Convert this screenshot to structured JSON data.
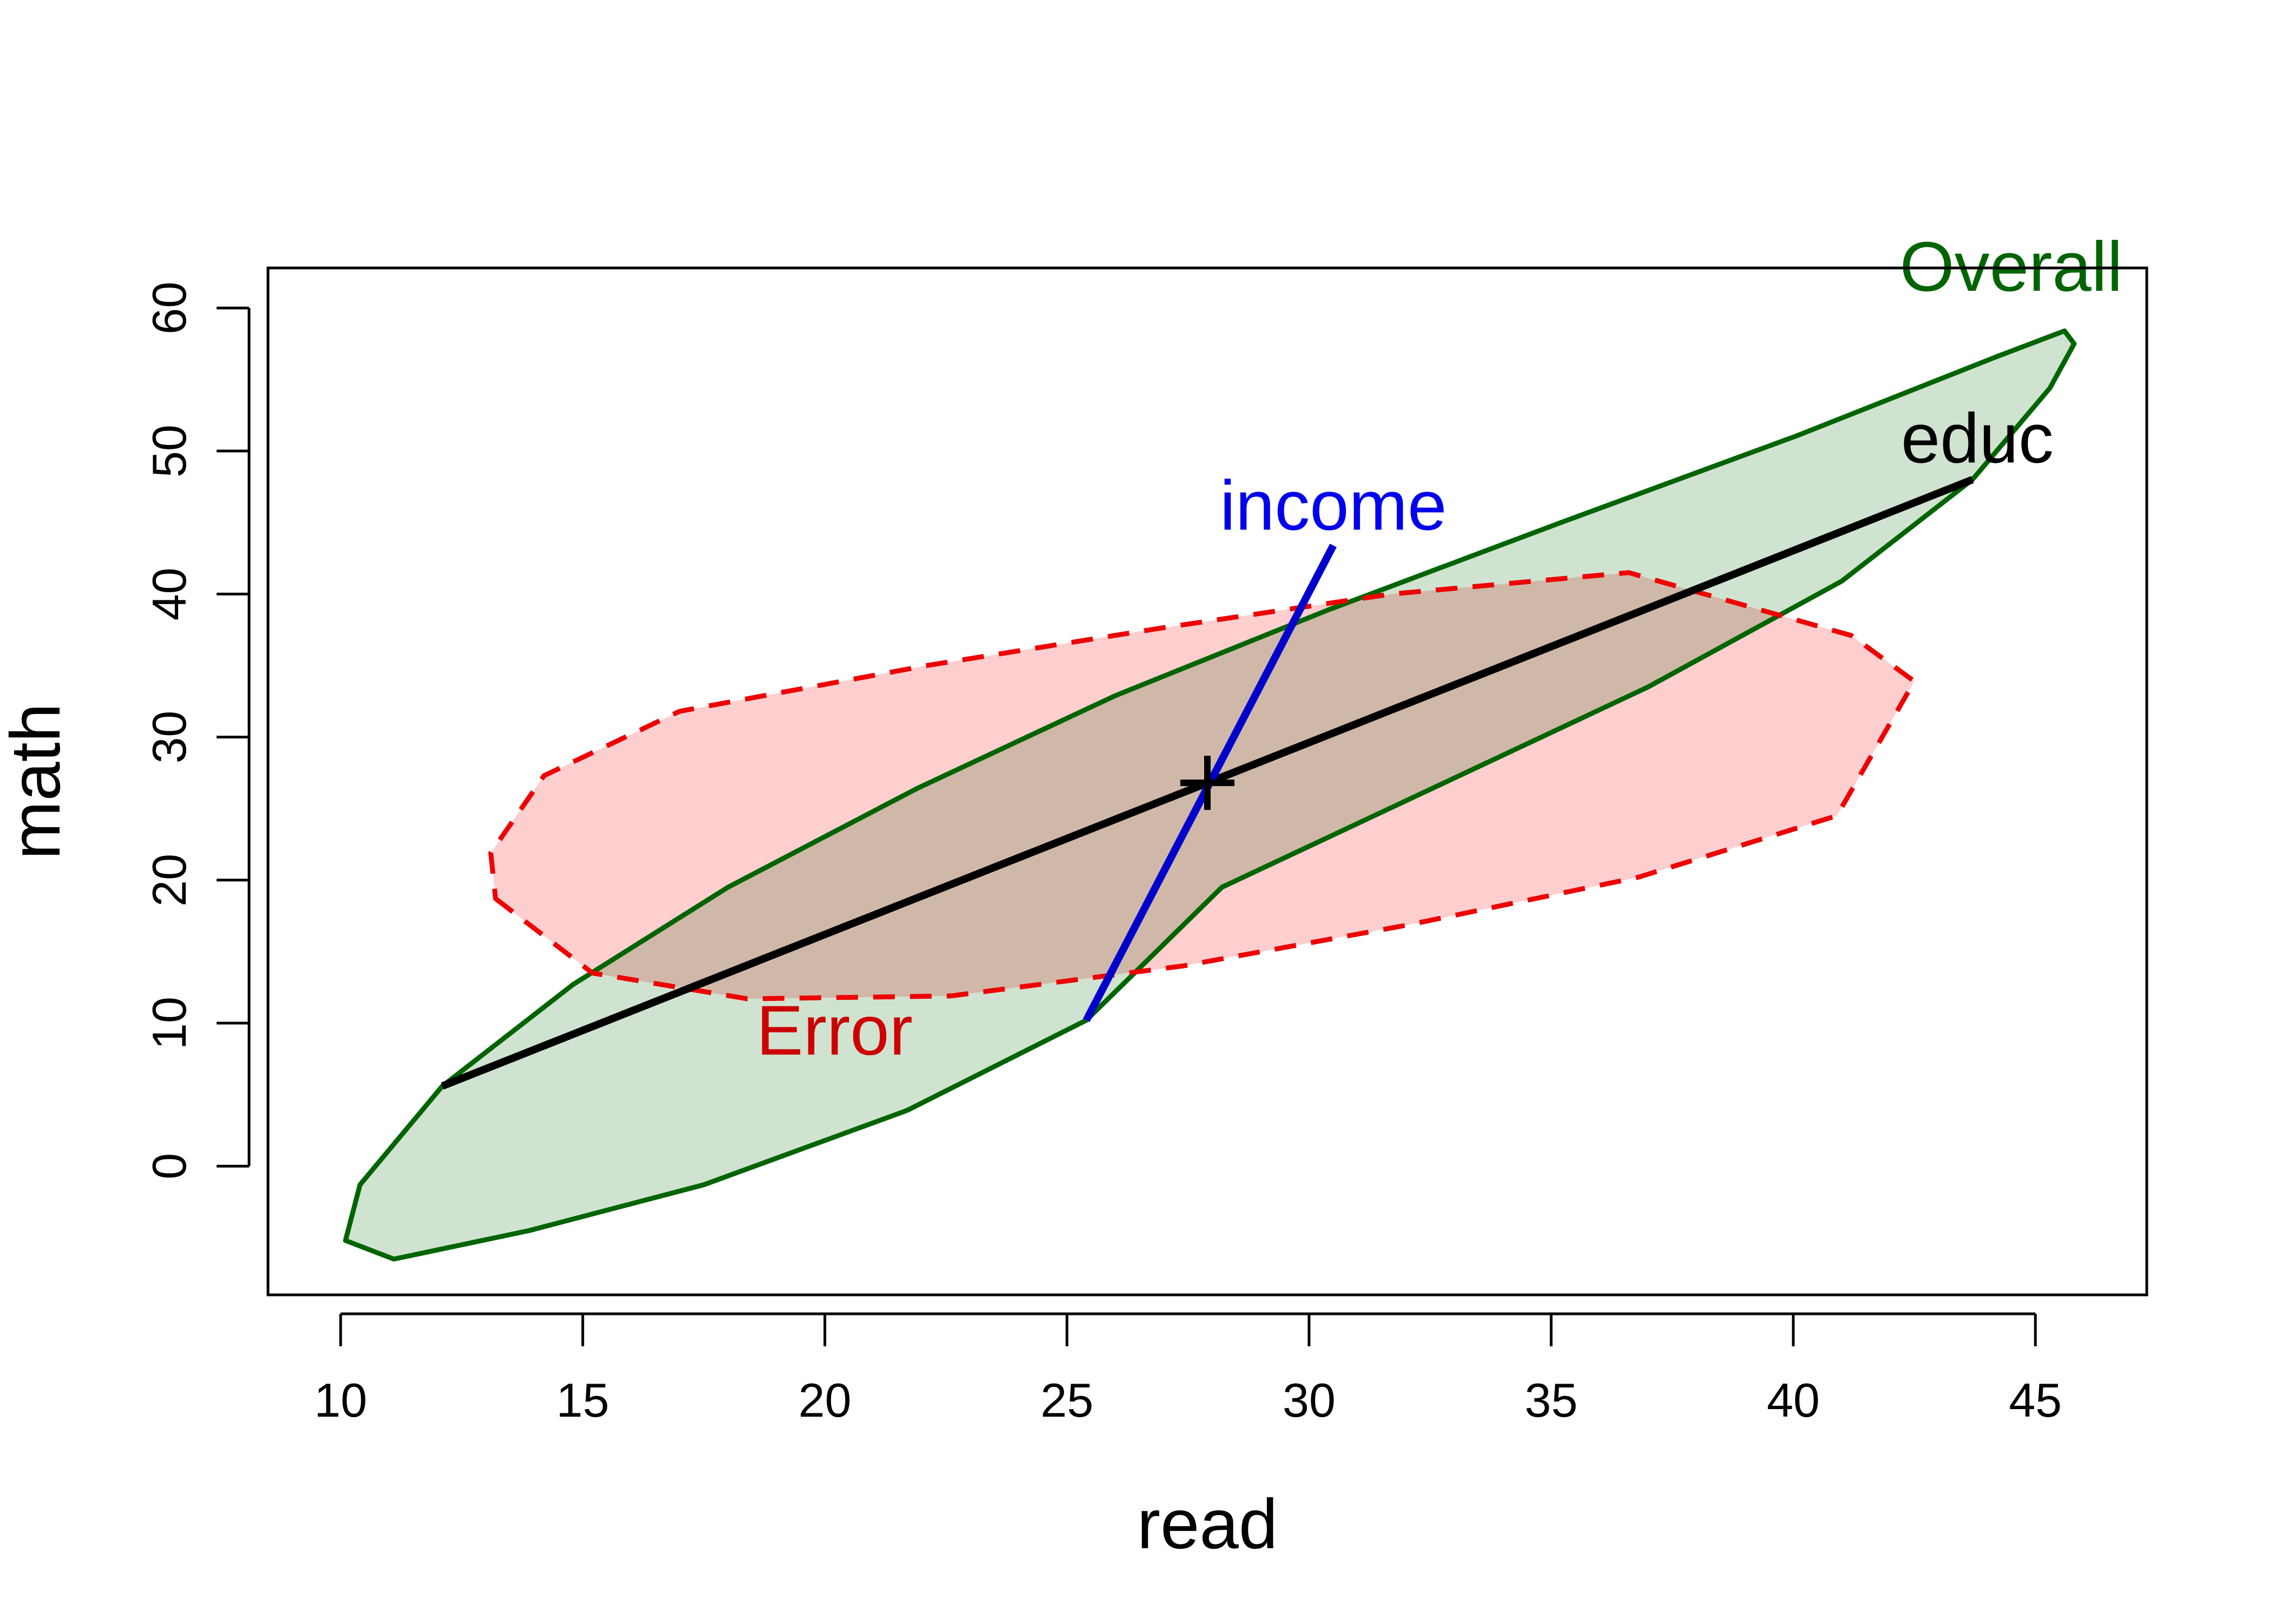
{
  "chart_data": {
    "type": "scatter",
    "title": "",
    "xlabel": "read",
    "ylabel": "math",
    "xlim": [
      8.5,
      47.3
    ],
    "ylim": [
      -9.0,
      62.8
    ],
    "x_ticks": [
      10,
      15,
      20,
      25,
      30,
      35,
      40,
      45
    ],
    "y_ticks": [
      0,
      10,
      20,
      30,
      40,
      50,
      60
    ],
    "grid": false,
    "ellipses": [
      {
        "name": "Overall",
        "center": [
          27.9,
          26.8
        ],
        "points": [
          [
            12.1,
            5.6
          ],
          [
            14.8,
            12.7
          ],
          [
            18.0,
            19.5
          ],
          [
            21.9,
            26.4
          ],
          [
            26.0,
            32.9
          ],
          [
            30.4,
            38.9
          ],
          [
            35.2,
            45.0
          ],
          [
            40.1,
            51.1
          ],
          [
            44.2,
            56.6
          ],
          [
            45.6,
            58.4
          ],
          [
            45.8,
            57.5
          ],
          [
            45.3,
            54.4
          ],
          [
            43.7,
            48.0
          ],
          [
            41.0,
            40.9
          ],
          [
            37.0,
            33.5
          ],
          [
            32.6,
            26.5
          ],
          [
            28.2,
            19.5
          ],
          [
            25.4,
            10.2
          ],
          [
            21.7,
            3.9
          ],
          [
            17.5,
            -1.3
          ],
          [
            13.9,
            -4.5
          ],
          [
            11.1,
            -6.5
          ],
          [
            10.1,
            -5.2
          ],
          [
            10.4,
            -1.3
          ],
          [
            12.1,
            5.6
          ]
        ],
        "fill": "#cde2cd",
        "stroke": "#006400",
        "label_color": "#006400",
        "line_style": "solid"
      },
      {
        "name": "Error",
        "center": [
          27.9,
          26.8
        ],
        "points": [
          [
            13.2,
            18.7
          ],
          [
            15.2,
            13.5
          ],
          [
            18.4,
            11.7
          ],
          [
            22.6,
            11.9
          ],
          [
            27.4,
            14.0
          ],
          [
            32.1,
            16.9
          ],
          [
            36.8,
            20.2
          ],
          [
            40.9,
            24.5
          ],
          [
            42.5,
            33.9
          ],
          [
            41.2,
            37.1
          ],
          [
            36.6,
            41.5
          ],
          [
            31.7,
            40.0
          ],
          [
            26.9,
            37.6
          ],
          [
            22.1,
            35.0
          ],
          [
            17.0,
            31.8
          ],
          [
            14.2,
            27.3
          ],
          [
            13.1,
            21.9
          ],
          [
            13.2,
            18.7
          ]
        ],
        "fill": "#ffcccc",
        "stroke": "#ee0000",
        "label_color": "#cc0000",
        "line_style": "dashed"
      }
    ],
    "segments": [
      {
        "name": "educ",
        "from": [
          12.1,
          5.6
        ],
        "to": [
          43.7,
          48.0
        ],
        "color": "#000000"
      },
      {
        "name": "income",
        "from": [
          25.4,
          10.2
        ],
        "to": [
          30.5,
          43.4
        ],
        "color": "#0000cc"
      }
    ],
    "center_marker": [
      27.9,
      26.8
    ],
    "labels": [
      {
        "text": "Overall",
        "x": 44.5,
        "y": 62.5,
        "color": "#006400"
      },
      {
        "text": "educ",
        "x": 43.8,
        "y": 50.5,
        "color": "#000000"
      },
      {
        "text": "income",
        "x": 30.5,
        "y": 45.8,
        "color": "#0000ee"
      },
      {
        "text": "Error",
        "x": 20.2,
        "y": 9.1,
        "color": "#cc0000"
      }
    ]
  }
}
